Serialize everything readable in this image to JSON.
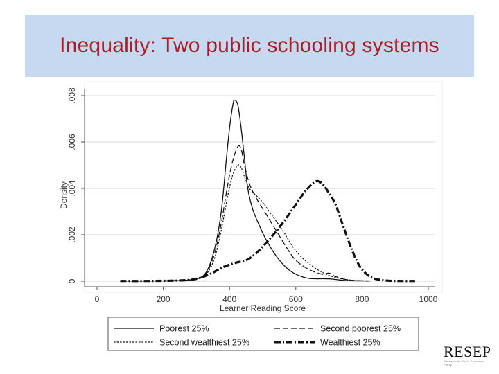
{
  "slide": {
    "title": "Inequality: Two public schooling systems",
    "title_color": "#b01c24",
    "banner_color": "#c6d9f1"
  },
  "logo": {
    "text": "RESEP",
    "subtitle": "Research on Socio-Economic Policy"
  },
  "chart_data": {
    "type": "line",
    "xlabel": "Learner Reading Score",
    "ylabel": "Density",
    "xlim": [
      0,
      1000
    ],
    "ylim": [
      0,
      0.008
    ],
    "xticks": [
      0,
      200,
      400,
      600,
      800,
      1000
    ],
    "xtick_labels": [
      "0",
      "200",
      "400",
      "600",
      "800",
      "1000"
    ],
    "yticks": [
      0,
      0.002,
      0.004,
      0.006,
      0.008
    ],
    "ytick_labels": [
      "0",
      ".002",
      ".004",
      ".006",
      ".008"
    ],
    "grid": true,
    "legend_position": "bottom",
    "series": [
      {
        "name": "Poorest 25%",
        "style": "solid",
        "points": [
          [
            70,
            1e-05
          ],
          [
            150,
            1e-05
          ],
          [
            250,
            3e-05
          ],
          [
            300,
            0.0001
          ],
          [
            330,
            0.0004
          ],
          [
            355,
            0.0014
          ],
          [
            375,
            0.003
          ],
          [
            390,
            0.0052
          ],
          [
            400,
            0.0066
          ],
          [
            410,
            0.0076
          ],
          [
            415,
            0.0078
          ],
          [
            425,
            0.0076
          ],
          [
            435,
            0.0066
          ],
          [
            445,
            0.0053
          ],
          [
            455,
            0.004
          ],
          [
            470,
            0.0031
          ],
          [
            490,
            0.0024
          ],
          [
            510,
            0.0018
          ],
          [
            540,
            0.0011
          ],
          [
            570,
            0.0006
          ],
          [
            600,
            0.0003
          ],
          [
            640,
            0.00012
          ],
          [
            700,
            0.0001
          ],
          [
            750,
            3e-05
          ],
          [
            820,
            1e-05
          ]
        ]
      },
      {
        "name": "Second poorest 25%",
        "style": "long-dash",
        "points": [
          [
            200,
            1e-05
          ],
          [
            260,
            5e-05
          ],
          [
            300,
            0.0001
          ],
          [
            330,
            0.00035
          ],
          [
            355,
            0.0012
          ],
          [
            375,
            0.0025
          ],
          [
            395,
            0.0042
          ],
          [
            410,
            0.0052
          ],
          [
            425,
            0.0058
          ],
          [
            435,
            0.0057
          ],
          [
            445,
            0.005
          ],
          [
            460,
            0.0042
          ],
          [
            480,
            0.0036
          ],
          [
            510,
            0.0029
          ],
          [
            540,
            0.0022
          ],
          [
            570,
            0.0015
          ],
          [
            600,
            0.0009
          ],
          [
            640,
            0.0005
          ],
          [
            680,
            0.0003
          ],
          [
            700,
            0.00035
          ],
          [
            720,
            0.0002
          ],
          [
            760,
            5e-05
          ],
          [
            830,
            1e-05
          ]
        ]
      },
      {
        "name": "Second wealthiest 25%",
        "style": "dotted",
        "points": [
          [
            180,
            1e-05
          ],
          [
            260,
            3e-05
          ],
          [
            300,
            0.0001
          ],
          [
            330,
            0.0003
          ],
          [
            355,
            0.001
          ],
          [
            375,
            0.0022
          ],
          [
            395,
            0.0037
          ],
          [
            410,
            0.0046
          ],
          [
            425,
            0.005
          ],
          [
            435,
            0.0049
          ],
          [
            445,
            0.0045
          ],
          [
            460,
            0.004
          ],
          [
            480,
            0.0037
          ],
          [
            500,
            0.0034
          ],
          [
            530,
            0.0028
          ],
          [
            560,
            0.0022
          ],
          [
            590,
            0.0015
          ],
          [
            620,
            0.001
          ],
          [
            660,
            0.00055
          ],
          [
            700,
            0.00025
          ],
          [
            740,
            0.0001
          ],
          [
            780,
            3e-05
          ],
          [
            820,
            1e-05
          ]
        ]
      },
      {
        "name": "Wealthiest 25%",
        "style": "dash-dot-thick",
        "points": [
          [
            70,
            1e-05
          ],
          [
            150,
            1e-05
          ],
          [
            250,
            3e-05
          ],
          [
            300,
            0.0001
          ],
          [
            340,
            0.0003
          ],
          [
            380,
            0.0006
          ],
          [
            420,
            0.0008
          ],
          [
            450,
            0.0009
          ],
          [
            480,
            0.0012
          ],
          [
            520,
            0.0018
          ],
          [
            560,
            0.0025
          ],
          [
            600,
            0.0033
          ],
          [
            630,
            0.0039
          ],
          [
            660,
            0.0043
          ],
          [
            680,
            0.0042
          ],
          [
            700,
            0.0038
          ],
          [
            720,
            0.0033
          ],
          [
            740,
            0.0025
          ],
          [
            760,
            0.0017
          ],
          [
            780,
            0.001
          ],
          [
            800,
            0.0005
          ],
          [
            830,
            0.00015
          ],
          [
            870,
            3e-05
          ],
          [
            920,
            1e-05
          ],
          [
            960,
            1e-05
          ]
        ]
      }
    ]
  }
}
